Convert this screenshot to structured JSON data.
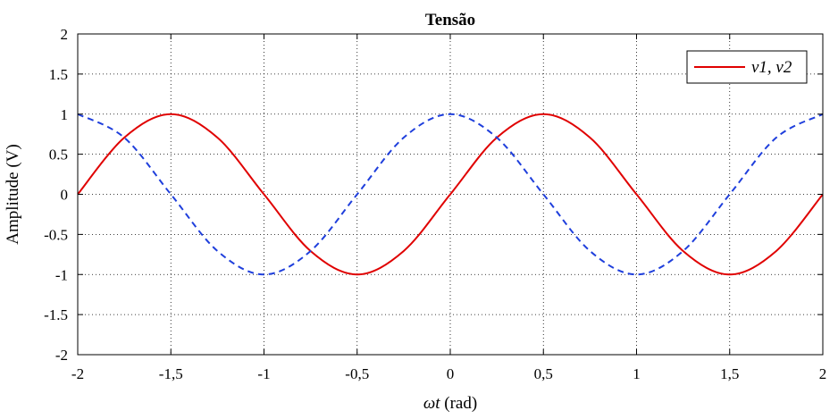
{
  "chart_data": {
    "type": "line",
    "title": "Tensão",
    "xlabel": "ωt (rad)",
    "ylabel": "Amplitude (V)",
    "xlim": [
      -2,
      2
    ],
    "ylim": [
      -2,
      2
    ],
    "x_ticks": [
      -2,
      -1.5,
      -1,
      -0.5,
      0,
      0.5,
      1,
      1.5,
      2
    ],
    "x_tick_labels": [
      "-2",
      "-1,5",
      "-1",
      "-0,5",
      "0",
      "0,5",
      "1",
      "1,5",
      "2"
    ],
    "y_ticks": [
      2,
      1.5,
      1,
      0.5,
      0,
      -0.5,
      -1,
      -1.5,
      -2
    ],
    "y_tick_labels": [
      "2",
      "1.5",
      "1",
      "0.5",
      "0",
      "-0.5",
      "-1",
      "-1.5",
      "-2"
    ],
    "grid": true,
    "legend": {
      "placement": "top-right",
      "entries": [
        "v1, v2"
      ]
    },
    "series": [
      {
        "color": "#e00000",
        "dash": "solid",
        "x": [
          -2,
          -1.75,
          -1.5,
          -1.25,
          -1,
          -0.75,
          -0.5,
          -0.25,
          0,
          0.25,
          0.5,
          0.75,
          1,
          1.25,
          1.5,
          1.75,
          2
        ],
        "y": [
          0,
          0.707,
          1,
          0.707,
          0,
          -0.707,
          -1,
          -0.707,
          0,
          0.707,
          1,
          0.707,
          0,
          -0.707,
          -1,
          -0.707,
          0
        ]
      },
      {
        "color": "#1f3fdc",
        "dash": "dashed",
        "x": [
          -2,
          -1.75,
          -1.5,
          -1.25,
          -1,
          -0.75,
          -0.5,
          -0.25,
          0,
          0.25,
          0.5,
          0.75,
          1,
          1.25,
          1.5,
          1.75,
          2
        ],
        "y": [
          1,
          0.707,
          0,
          -0.707,
          -1,
          -0.707,
          0,
          0.707,
          1,
          0.707,
          0,
          -0.707,
          -1,
          -0.707,
          0,
          0.707,
          1
        ]
      }
    ]
  }
}
